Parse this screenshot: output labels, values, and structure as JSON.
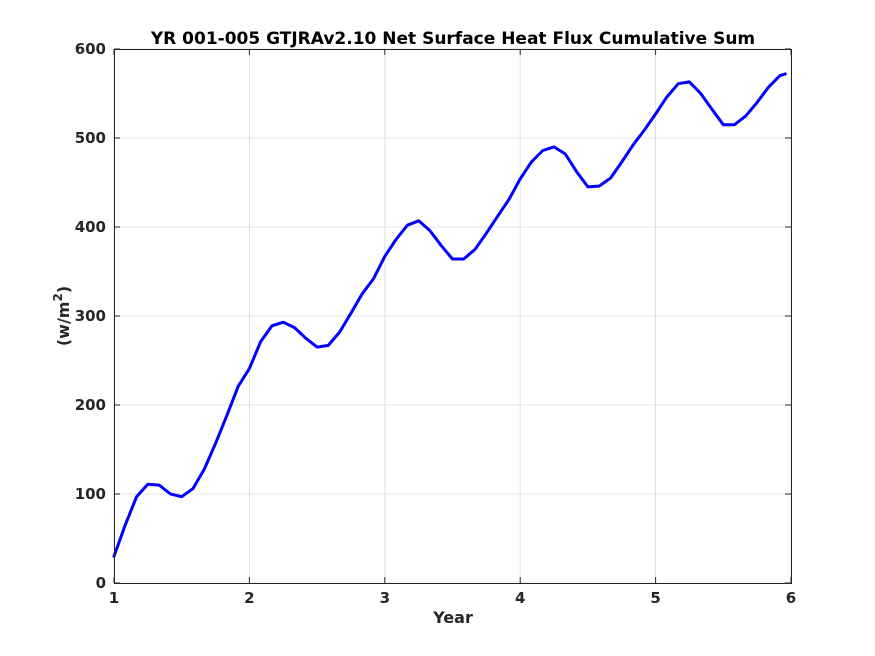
{
  "chart_data": {
    "type": "line",
    "title": "YR 001-005 GTJRAv2.10 Net Surface Heat Flux  Cumulative Sum",
    "xlabel": "Year",
    "ylabel": "(w/m²)",
    "ylabel_base": "(w/m",
    "ylabel_sup": "2",
    "ylabel_close": ")",
    "xlim": [
      1,
      6
    ],
    "ylim": [
      0,
      600
    ],
    "xticks": [
      "1",
      "2",
      "3",
      "4",
      "5",
      "6"
    ],
    "yticks": [
      "0",
      "100",
      "200",
      "300",
      "400",
      "500",
      "600"
    ],
    "grid": true,
    "series_color": "#0000ff",
    "series": [
      {
        "x": [
          1.0,
          1.083,
          1.167,
          1.25,
          1.333,
          1.417,
          1.5,
          1.583,
          1.667,
          1.75,
          1.833,
          1.917,
          2.0,
          2.083,
          2.167,
          2.25,
          2.333,
          2.417,
          2.5,
          2.583,
          2.667,
          2.75,
          2.833,
          2.917,
          3.0,
          3.083,
          3.167,
          3.25,
          3.333,
          3.417,
          3.5,
          3.583,
          3.667,
          3.75,
          3.833,
          3.917,
          4.0,
          4.083,
          4.167,
          4.25,
          4.333,
          4.417,
          4.5,
          4.583,
          4.667,
          4.75,
          4.833,
          4.917,
          5.0,
          5.083,
          5.167,
          5.25,
          5.333,
          5.417,
          5.5,
          5.583,
          5.667,
          5.75,
          5.833,
          5.917,
          5.958
        ],
        "values": [
          30,
          65,
          97,
          111,
          110,
          100,
          97,
          106,
          128,
          157,
          188,
          221,
          241,
          271,
          289,
          293,
          287,
          275,
          265,
          267,
          282,
          303,
          325,
          342,
          367,
          386,
          402,
          407,
          396,
          379,
          364,
          364,
          375,
          393,
          412,
          431,
          454,
          473,
          486,
          490,
          482,
          462,
          445,
          446,
          455,
          473,
          492,
          509,
          527,
          546,
          561,
          563,
          550,
          532,
          515,
          515,
          525,
          540,
          557,
          570,
          572
        ]
      }
    ]
  }
}
